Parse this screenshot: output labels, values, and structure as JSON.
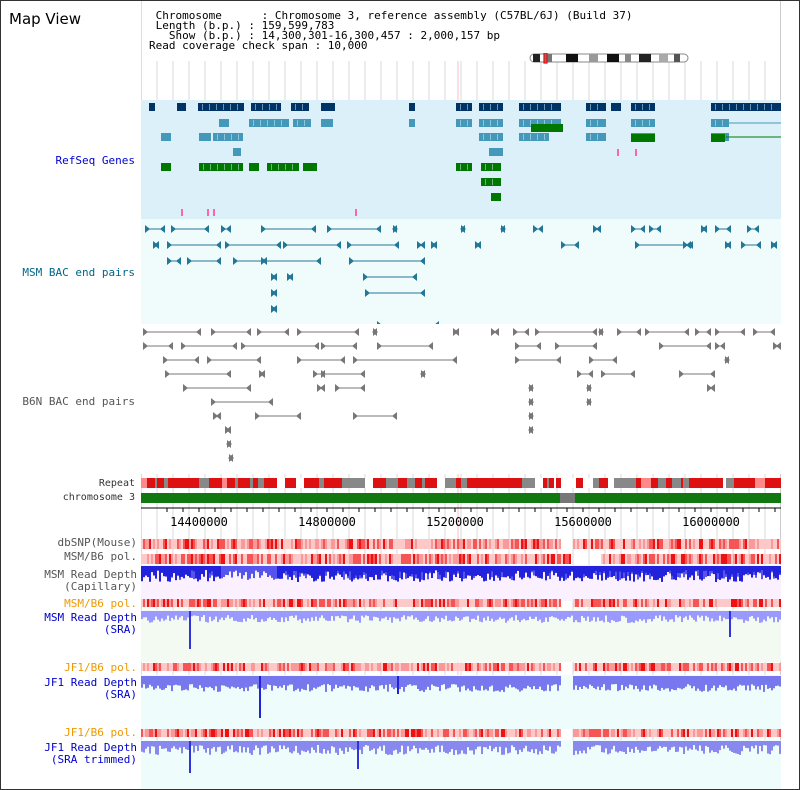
{
  "header": {
    "title": "Map View",
    "info_lines": [
      " Chromosome      : Chromosome 3, reference assembly (C57BL/6J) (Build 37)",
      " Length (b.p.) : 159,599,783",
      "   Show (b.p.) : 14,300,301-16,300,457 : 2,000,157 bp",
      "Read coverage check span : 10,000"
    ]
  },
  "tracks": {
    "refseq": "RefSeq Genes",
    "msm_bac": "MSM BAC end pairs",
    "b6n_bac": "B6N BAC end pairs",
    "repeat": "Repeat",
    "chromosome": "chromosome 3",
    "dbsnp": "dbSNP(Mouse)",
    "msm_b6_pol_1": "MSM/B6 pol.",
    "msm_depth_cap_1": "MSM Read Depth",
    "msm_depth_cap_2": "(Capillary)",
    "msm_b6_pol_2": "MSM/B6 pol.",
    "msm_depth_sra_1": "MSM Read Depth",
    "msm_depth_sra_2": "(SRA)",
    "jf1_b6_pol_1": "JF1/B6 pol.",
    "jf1_depth_sra_1": "JF1 Read Depth",
    "jf1_depth_sra_2": "(SRA)",
    "jf1_b6_pol_2": "JF1/B6 pol.",
    "jf1_depth_trim_1": "JF1 Read Depth",
    "jf1_depth_trim_2": "(SRA trimmed)"
  },
  "ruler": {
    "ticks": [
      "14400000",
      "14800000",
      "15200000",
      "15600000",
      "16000000"
    ]
  },
  "colors": {
    "refseq_bg": "#dcf0fa",
    "bac_bg": "#f0fbfb",
    "gene_dark": "#003366",
    "gene_mid": "#4499bb",
    "gene_green": "#007700",
    "msm_bac": "#227799",
    "b6n_bac": "#777777",
    "repeat_red": "#dd1111",
    "chrom_green": "#117711",
    "pol_red": "#ee3333",
    "depth_blue": "#3333ee",
    "depth_light": "#8888ff"
  }
}
